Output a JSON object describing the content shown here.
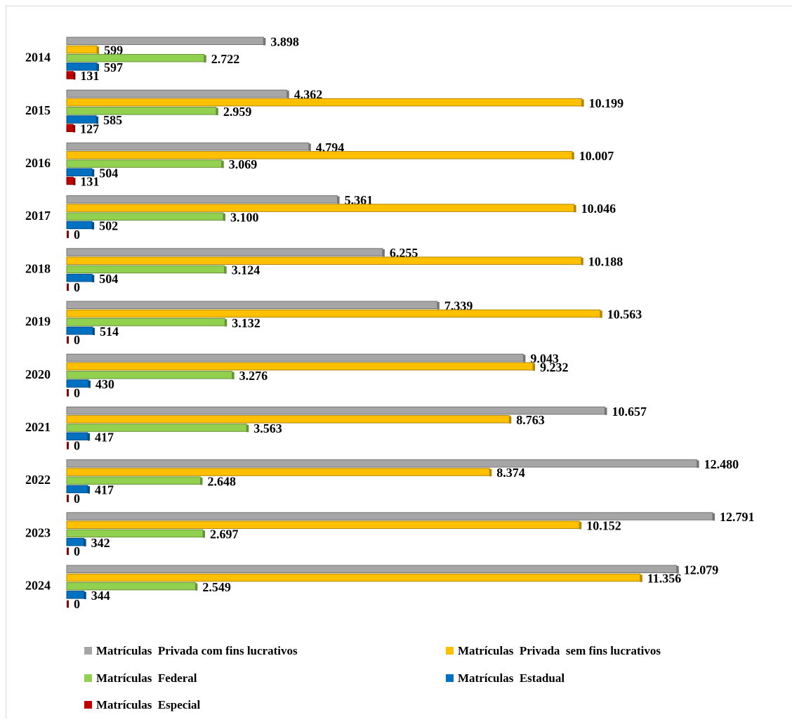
{
  "chart_data": {
    "type": "bar",
    "orientation": "horizontal",
    "categories": [
      "2014",
      "2015",
      "2016",
      "2017",
      "2018",
      "2019",
      "2020",
      "2021",
      "2022",
      "2023",
      "2024"
    ],
    "series": [
      {
        "name": "Matrículas  Privada com fins lucrativos",
        "color": "#a6a6a6",
        "values": [
          3898,
          4362,
          4794,
          5361,
          6255,
          7339,
          9043,
          10657,
          12480,
          12791,
          12079
        ],
        "value_labels": [
          "3.898",
          "4.362",
          "4.794",
          "5.361",
          "6.255",
          "7.339",
          "9.043",
          "10.657",
          "12.480",
          "12.791",
          "12.079"
        ]
      },
      {
        "name": "Matrículas  Privada  sem fins lucrativos",
        "color": "#ffc000",
        "values": [
          599,
          10199,
          10007,
          10046,
          10188,
          10563,
          9232,
          8763,
          8374,
          10152,
          11356
        ],
        "value_labels": [
          "599",
          "10.199",
          "10.007",
          "10.046",
          "10.188",
          "10.563",
          "9.232",
          "8.763",
          "8.374",
          "10.152",
          "11.356"
        ]
      },
      {
        "name": "Matrículas  Federal",
        "color": "#92d050",
        "values": [
          2722,
          2959,
          3069,
          3100,
          3124,
          3132,
          3276,
          3563,
          2648,
          2697,
          2549
        ],
        "value_labels": [
          "2.722",
          "2.959",
          "3.069",
          "3.100",
          "3.124",
          "3.132",
          "3.276",
          "3.563",
          "2.648",
          "2.697",
          "2.549"
        ]
      },
      {
        "name": "Matrículas  Estadual",
        "color": "#0070c0",
        "values": [
          597,
          585,
          504,
          502,
          504,
          514,
          430,
          417,
          417,
          342,
          344
        ],
        "value_labels": [
          "597",
          "585",
          "504",
          "502",
          "504",
          "514",
          "430",
          "417",
          "417",
          "342",
          "344"
        ]
      },
      {
        "name": "Matrículas  Especial",
        "color": "#c00000",
        "values": [
          131,
          127,
          131,
          0,
          0,
          0,
          0,
          0,
          0,
          0,
          0
        ],
        "value_labels": [
          "131",
          "127",
          "131",
          "0",
          "0",
          "0",
          "0",
          "0",
          "0",
          "0",
          "0"
        ]
      }
    ]
  }
}
